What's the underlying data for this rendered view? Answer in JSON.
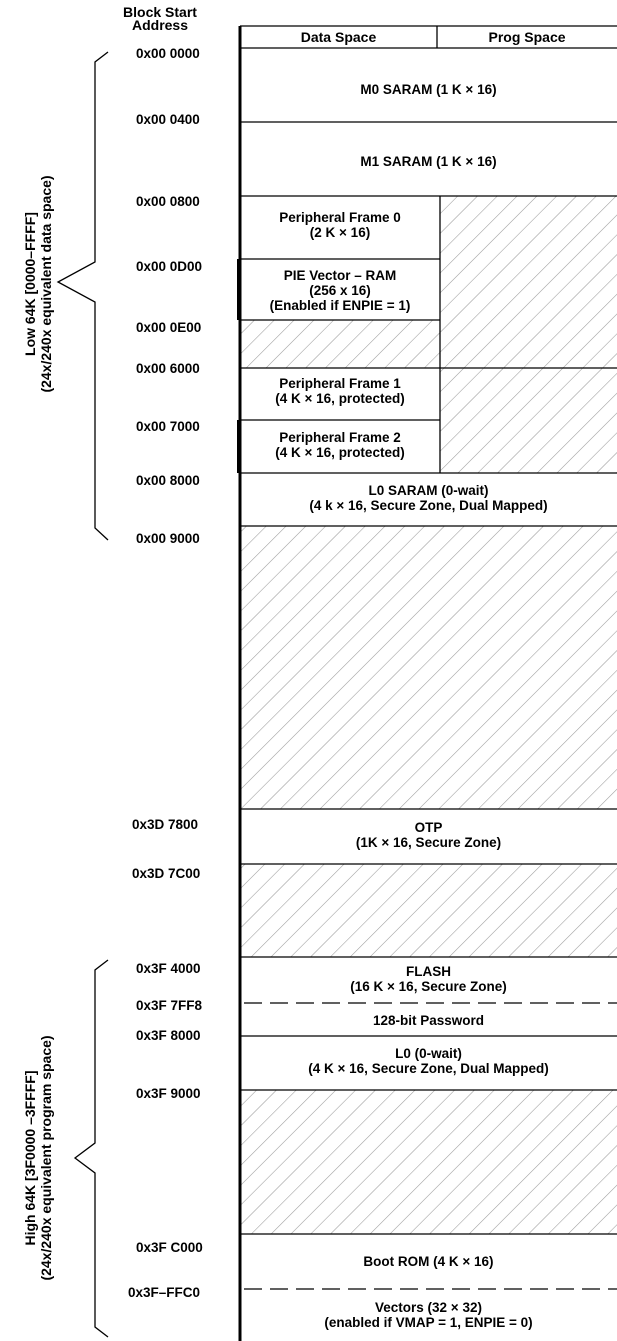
{
  "header": {
    "line1": "Block Start",
    "line2": "Address"
  },
  "columns": {
    "data": "Data Space",
    "prog": "Prog Space"
  },
  "addresses": [
    "0x00 0000",
    "0x00 0400",
    "0x00 0800",
    "0x00 0D00",
    "0x00 0E00",
    "0x00 6000",
    "0x00 7000",
    "0x00 8000",
    "0x00 9000",
    "0x3D 7800",
    "0x3D 7C00",
    "0x3F 4000",
    "0x3F 7FF8",
    "0x3F 8000",
    "0x3F 9000",
    "0x3F C000",
    "0x3F–FFC0"
  ],
  "blocks": {
    "m0": [
      "M0 SARAM (1 K × 16)"
    ],
    "m1": [
      "M1 SARAM (1 K × 16)"
    ],
    "pf0": [
      "Peripheral Frame 0",
      "(2 K × 16)"
    ],
    "pie": [
      "PIE Vector – RAM",
      "(256 x 16)",
      "(Enabled if ENPIE = 1)"
    ],
    "pf1": [
      "Peripheral Frame 1",
      "(4 K × 16, protected)"
    ],
    "pf2": [
      "Peripheral Frame 2",
      "(4 K × 16, protected)"
    ],
    "l0saram": [
      "L0 SARAM (0-wait)",
      "(4 k × 16, Secure Zone, Dual Mapped)"
    ],
    "otp": [
      "OTP",
      "(1K × 16, Secure Zone)"
    ],
    "flash": [
      "FLASH",
      "(16 K × 16, Secure Zone)"
    ],
    "password": [
      "128-bit Password"
    ],
    "l0": [
      "L0 (0-wait)",
      "(4 K × 16, Secure Zone, Dual Mapped)"
    ],
    "bootrom": [
      "Boot ROM (4 K × 16)"
    ],
    "vectors": [
      "Vectors (32 × 32)",
      "(enabled if VMAP = 1, ENPIE = 0)"
    ]
  },
  "side_labels": {
    "low": [
      "Low 64K [0000–FFFF]",
      "(24x/240x equivalent data space)"
    ],
    "high": [
      "High 64K  [3F0000 –3FFFF]",
      "(24x/240x equivalent program space)"
    ]
  },
  "colors": {
    "line": "#000000",
    "hatch": "#9a9a9a"
  }
}
